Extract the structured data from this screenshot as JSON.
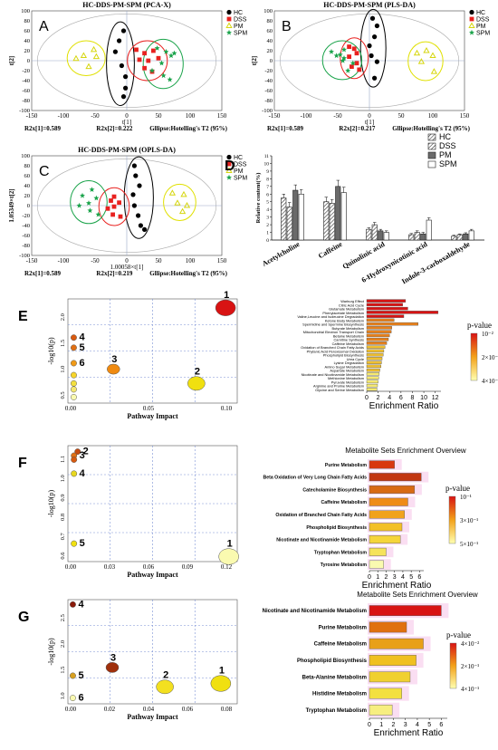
{
  "palette": {
    "hc": "#000000",
    "dss": "#e8211f",
    "pm": "#d6d60f",
    "spm": "#1aa34a",
    "grid": "#7a8fd4",
    "ref_line": "#9aa8c7",
    "heat_low": "#ffffb0",
    "heat_mid": "#f3a21a",
    "heat_high": "#d81313",
    "highlight": "#f6c3e8"
  },
  "legend_groups": [
    "HC",
    "DSS",
    "PM",
    "SPM"
  ],
  "figure_a": {
    "letter": "A",
    "title": "HC-DDS-PM-SPM (PCA-X)",
    "ylabel": "t[2]",
    "xlabel": "t[1]",
    "footer": [
      "R2x[1]=0.589",
      "R2x[2]=0.222",
      "Gllipse:Hotelling's T2 (95%)"
    ],
    "xticks": [
      "-150",
      "-100",
      "-50",
      "0",
      "50",
      "100",
      "150"
    ],
    "yticks": [
      "-100",
      "-80",
      "-60",
      "-40",
      "-20",
      "0",
      "20",
      "40",
      "60",
      "80",
      "100"
    ],
    "points": {
      "HC": [
        [
          -5,
          60
        ],
        [
          -12,
          40
        ],
        [
          -18,
          18
        ],
        [
          -8,
          -10
        ],
        [
          -2,
          -32
        ],
        [
          -2,
          -55
        ],
        [
          -5,
          -72
        ]
      ],
      "DSS": [
        [
          15,
          22
        ],
        [
          28,
          15
        ],
        [
          42,
          20
        ],
        [
          20,
          2
        ],
        [
          34,
          0
        ],
        [
          50,
          5
        ],
        [
          28,
          -15
        ],
        [
          40,
          -22
        ]
      ],
      "PM": [
        [
          -68,
          10
        ],
        [
          -80,
          4
        ],
        [
          -48,
          8
        ],
        [
          -52,
          22
        ],
        [
          -60,
          -12
        ]
      ],
      "SPM": [
        [
          48,
          25
        ],
        [
          62,
          18
        ],
        [
          75,
          15
        ],
        [
          70,
          10
        ],
        [
          55,
          -5
        ],
        [
          40,
          -20
        ],
        [
          58,
          -30
        ],
        [
          68,
          -38
        ]
      ]
    }
  },
  "figure_b": {
    "letter": "B",
    "title": "HC-DDS-PM-SPM (PLS-DA)",
    "ylabel": "t[2]",
    "xlabel": "t[1]",
    "footer": [
      "R2x[1]=0.589",
      "R2x[2]=0.217",
      "Gllipse:Hotelling's T2 (95%)"
    ],
    "xticks": [
      "-150",
      "-100",
      "-50",
      "0",
      "50",
      "100",
      "150"
    ],
    "yticks": [
      "-100",
      "-80",
      "-60",
      "-40",
      "-20",
      "0",
      "20",
      "40",
      "60",
      "80",
      "100"
    ],
    "points": {
      "HC": [
        [
          5,
          85
        ],
        [
          12,
          70
        ],
        [
          8,
          48
        ],
        [
          0,
          30
        ],
        [
          3,
          10
        ],
        [
          12,
          -2
        ],
        [
          8,
          -35
        ]
      ],
      "DSS": [
        [
          -32,
          28
        ],
        [
          -24,
          24
        ],
        [
          -20,
          15
        ],
        [
          -32,
          8
        ],
        [
          -20,
          -5
        ],
        [
          -28,
          -12
        ],
        [
          -16,
          -18
        ]
      ],
      "PM": [
        [
          75,
          15
        ],
        [
          90,
          20
        ],
        [
          100,
          10
        ],
        [
          82,
          -2
        ],
        [
          102,
          -22
        ]
      ],
      "SPM": [
        [
          -60,
          18
        ],
        [
          -40,
          22
        ],
        [
          -46,
          12
        ],
        [
          -52,
          10
        ],
        [
          -40,
          5
        ],
        [
          -42,
          0
        ],
        [
          -26,
          -5
        ],
        [
          -34,
          -20
        ]
      ]
    }
  },
  "figure_c": {
    "letter": "C",
    "title": "HC-DDS-PM-SPM (OPLS-DA)",
    "ylabel": "1.05349×t[2]",
    "xlabel": "1.00058×t[1]",
    "footer": [
      "R2x[1]=0.589",
      "R2x[2]=0.219",
      "Gllipse:Hotelling's T2 (95%)"
    ],
    "xticks": [
      "-150",
      "-100",
      "-50",
      "0",
      "50",
      "100",
      "150"
    ],
    "yticks": [
      "-100",
      "-80",
      "-60",
      "-40",
      "-20",
      "0",
      "20",
      "40",
      "60",
      "80",
      "100"
    ],
    "points": {
      "HC": [
        [
          12,
          80
        ],
        [
          14,
          60
        ],
        [
          20,
          40
        ],
        [
          10,
          22
        ],
        [
          12,
          0
        ],
        [
          18,
          -20
        ],
        [
          22,
          -40
        ],
        [
          28,
          -48
        ]
      ],
      "DSS": [
        [
          -20,
          18
        ],
        [
          -25,
          10
        ],
        [
          -12,
          6
        ],
        [
          -20,
          -2
        ],
        [
          -30,
          -6
        ],
        [
          -22,
          -18
        ],
        [
          -10,
          -22
        ]
      ],
      "PM": [
        [
          72,
          25
        ],
        [
          90,
          22
        ],
        [
          80,
          5
        ],
        [
          95,
          0
        ],
        [
          88,
          -12
        ]
      ],
      "SPM": [
        [
          -70,
          20
        ],
        [
          -55,
          32
        ],
        [
          -48,
          15
        ],
        [
          -60,
          5
        ],
        [
          -75,
          0
        ],
        [
          -58,
          -10
        ],
        [
          -45,
          -18
        ]
      ]
    }
  },
  "figure_d": {
    "letter": "D",
    "ylabel": "Relative content(%)",
    "yticks": [
      "0",
      "1",
      "2",
      "3",
      "4",
      "5",
      "6",
      "7",
      "8",
      "9",
      "10",
      "11"
    ],
    "categories": [
      "Acetylcholine",
      "Caffeine",
      "Quinolinic acid",
      "6-Hydroxynicotinic acid",
      "Indole-3-carboxaldehyde"
    ],
    "series": [
      {
        "name": "HC",
        "values": [
          5.5,
          5.0,
          1.4,
          0.7,
          0.5
        ]
      },
      {
        "name": "DSS",
        "values": [
          4.3,
          4.8,
          2.0,
          1.0,
          0.7
        ]
      },
      {
        "name": "PM",
        "values": [
          6.5,
          7.0,
          1.2,
          0.8,
          0.8
        ]
      },
      {
        "name": "SPM",
        "values": [
          6.0,
          6.2,
          1.0,
          2.6,
          1.2
        ]
      }
    ],
    "errors": [
      [
        0.5,
        0.6,
        0.2,
        0.15,
        0.12
      ],
      [
        0.6,
        0.5,
        0.3,
        0.2,
        0.1
      ],
      [
        0.7,
        0.8,
        0.2,
        0.2,
        0.15
      ],
      [
        0.6,
        0.7,
        0.2,
        0.3,
        0.2
      ]
    ]
  },
  "figure_e": {
    "letter": "E",
    "bubble": {
      "ylabel": "-log10(p)",
      "xlabel": "Pathway Impact",
      "xticks": [
        "0.00",
        "0.05",
        "0.10"
      ],
      "yticks": [
        "0.5",
        "1.0",
        "1.5",
        "2.0"
      ],
      "points": [
        {
          "label": "1",
          "x": 0.13,
          "y": 2.05,
          "size": 3,
          "color": "#d81313"
        },
        {
          "label": "2",
          "x": 0.105,
          "y": 0.78,
          "size": 2.5,
          "color": "#f0e010"
        },
        {
          "label": "3",
          "x": 0.034,
          "y": 1.02,
          "size": 2,
          "color": "#f08a10"
        },
        {
          "label": "4",
          "x": 0.0,
          "y": 1.55,
          "size": 1,
          "color": "#d85a10"
        },
        {
          "label": "5",
          "x": 0.0,
          "y": 1.38,
          "size": 1,
          "color": "#e07014"
        },
        {
          "label": "6",
          "x": 0.0,
          "y": 1.12,
          "size": 1,
          "color": "#f09a18"
        },
        {
          "label": "",
          "x": 0.0,
          "y": 0.92,
          "size": 1,
          "color": "#f7d52a"
        },
        {
          "label": "",
          "x": 0.0,
          "y": 0.78,
          "size": 1,
          "color": "#f3e040"
        },
        {
          "label": "",
          "x": 0.0,
          "y": 0.68,
          "size": 1,
          "color": "#f5e870"
        },
        {
          "label": "",
          "x": 0.0,
          "y": 0.55,
          "size": 1,
          "color": "#fafab0"
        }
      ]
    },
    "bars": {
      "xlabel": "Enrichment Ratio",
      "xticks": [
        "0",
        "2",
        "4",
        "6",
        "8",
        "10",
        "12"
      ],
      "legend_title": "p-value",
      "legend_ticks": [
        "10⁻²",
        "2×10⁻¹",
        "4×10⁻¹"
      ],
      "rows": [
        {
          "label": "Warburg Effect",
          "value": 6.8
        },
        {
          "label": "Citric Acid Cycle",
          "value": 6.3
        },
        {
          "label": "Glutamate Metabolism",
          "value": 7.2
        },
        {
          "label": "Phenylacetate Metabolism",
          "value": 12.5
        },
        {
          "label": "Valine,Leucine and Isoleucine Degradation",
          "value": 6.5
        },
        {
          "label": "Ketone Body Metabolism",
          "value": 4.8
        },
        {
          "label": "Spermidine and Spermine Biosynthesis",
          "value": 9.0
        },
        {
          "label": "Butyrate Metabolism",
          "value": 4.4
        },
        {
          "label": "Mitochondrial Electron Transport Chain",
          "value": 4.3
        },
        {
          "label": "Betaine Metabolism",
          "value": 4.0
        },
        {
          "label": "Carnitine Synthesis",
          "value": 3.8
        },
        {
          "label": "Caffeine Metabolism",
          "value": 3.5
        },
        {
          "label": "Oxidation of Branched Chain Fatty Acids",
          "value": 3.2
        },
        {
          "label": "Phytanic Acid Peroxisomal Oxidation",
          "value": 3.0
        },
        {
          "label": "Phospholipid Biosynthesis",
          "value": 2.9
        },
        {
          "label": "Urea Cycle",
          "value": 2.7
        },
        {
          "label": "Lysine Degradation",
          "value": 2.6
        },
        {
          "label": "Amino Sugar Metabolism",
          "value": 2.5
        },
        {
          "label": "Aspartate Metabolism",
          "value": 2.3
        },
        {
          "label": "Nicotinate and Nicotinamide Metabolism",
          "value": 2.2
        },
        {
          "label": "Methionine Metabolism",
          "value": 2.1
        },
        {
          "label": "Pyruvate Metabolism",
          "value": 2.0
        },
        {
          "label": "Arginine and Proline Metabolism",
          "value": 1.9
        },
        {
          "label": "Glycine and Serine Metabolism",
          "value": 1.8
        }
      ]
    }
  },
  "figure_f": {
    "letter": "F",
    "bubble": {
      "ylabel": "-log10(p)",
      "xlabel": "Pathway Impact",
      "xticks": [
        "0.00",
        "0.03",
        "0.06",
        "0.09",
        "0.12"
      ],
      "yticks": [
        "0.6",
        "0.7",
        "0.8",
        "0.9",
        "1.0",
        "1.1"
      ],
      "points": [
        {
          "label": "1",
          "x": 0.128,
          "y": 0.575,
          "size": 3,
          "color": "#fafab0"
        },
        {
          "label": "2",
          "x": 0.003,
          "y": 1.1,
          "size": 1,
          "color": "#c44a10"
        },
        {
          "label": "3",
          "x": 0.0,
          "y": 1.08,
          "size": 1,
          "color": "#e07014"
        },
        {
          "label": "4",
          "x": 0.0,
          "y": 0.99,
          "size": 1,
          "color": "#e8d820"
        },
        {
          "label": "5",
          "x": 0.0,
          "y": 0.64,
          "size": 1,
          "color": "#f0e010"
        },
        {
          "label": "",
          "x": 0.0,
          "y": 1.06,
          "size": 1,
          "color": "#d65a10"
        }
      ]
    },
    "bars": {
      "title": "Metabolite Sets Enrichment Overview",
      "xlabel": "Enrichment Ratio",
      "xticks": [
        "0",
        "1",
        "2",
        "3",
        "4",
        "5",
        "6"
      ],
      "legend_title": "p-value",
      "legend_ticks": [
        "10⁻¹",
        "3×10⁻¹",
        "5×10⁻¹"
      ],
      "rows": [
        {
          "label": "Purine Metabolism",
          "value": 3.0,
          "color": "#d8370f"
        },
        {
          "label": "Beta Oxidation of Very Long Chain Fatty Acids",
          "value": 6.2,
          "color": "#c23612"
        },
        {
          "label": "Catecholamine Biosynthesis",
          "value": 5.4,
          "color": "#d86a14"
        },
        {
          "label": "Caffeine Metabolism",
          "value": 4.6,
          "color": "#ef8c18"
        },
        {
          "label": "Oxidation of Branched Chain Fatty Acids",
          "value": 4.2,
          "color": "#f0a21c"
        },
        {
          "label": "Phospholipid Biosynthesis",
          "value": 3.9,
          "color": "#f3c027"
        },
        {
          "label": "Nicotinate and Nicotinamide Metabolism",
          "value": 3.7,
          "color": "#f5d53a"
        },
        {
          "label": "Tryptophan Metabolism",
          "value": 2.0,
          "color": "#f6e35a"
        },
        {
          "label": "Tyrosine Metabolism",
          "value": 1.7,
          "color": "#fafab0"
        }
      ]
    }
  },
  "figure_g": {
    "letter": "G",
    "bubble": {
      "ylabel": "-log10(p)",
      "xlabel": "Pathway Impact",
      "xticks": [
        "0.00",
        "0.02",
        "0.04",
        "0.06",
        "0.08"
      ],
      "yticks": [
        "1.0",
        "1.5",
        "2.0",
        "2.5"
      ],
      "points": [
        {
          "label": "1",
          "x": 0.09,
          "y": 0.92,
          "size": 3,
          "color": "#f0e010"
        },
        {
          "label": "2",
          "x": 0.056,
          "y": 0.85,
          "size": 2.5,
          "color": "#f3e020"
        },
        {
          "label": "3",
          "x": 0.024,
          "y": 1.25,
          "size": 2,
          "color": "#a0300c"
        },
        {
          "label": "4",
          "x": 0.0,
          "y": 2.55,
          "size": 1,
          "color": "#8a1a0a"
        },
        {
          "label": "5",
          "x": 0.0,
          "y": 1.08,
          "size": 1,
          "color": "#d8a020"
        },
        {
          "label": "6",
          "x": 0.0,
          "y": 0.62,
          "size": 1,
          "color": "#fafab0"
        }
      ]
    },
    "bars": {
      "title": "Metabolite Sets Enrichment Overview",
      "xlabel": "Enrichment Ratio",
      "xticks": [
        "0",
        "1",
        "2",
        "3",
        "4",
        "5",
        "6"
      ],
      "legend_title": "p-value",
      "legend_ticks": [
        "4×10⁻²",
        "2×10⁻¹",
        "4×10⁻¹"
      ],
      "rows": [
        {
          "label": "Nicotinate and Nicotinamide Metabolism",
          "value": 6.0,
          "color": "#d81313"
        },
        {
          "label": "Purine Metabolism",
          "value": 3.1,
          "color": "#e0700f"
        },
        {
          "label": "Caffeine Metabolism",
          "value": 4.5,
          "color": "#e8a018"
        },
        {
          "label": "Phospholipid Biosynthesis",
          "value": 3.9,
          "color": "#f0c020"
        },
        {
          "label": "Beta-Alanine Metabolism",
          "value": 3.4,
          "color": "#f0d030"
        },
        {
          "label": "Histidine Metabolism",
          "value": 2.7,
          "color": "#f3e040"
        },
        {
          "label": "Tryptophan Metabolism",
          "value": 1.9,
          "color": "#f7ee80"
        }
      ]
    }
  },
  "chart_data": [
    {
      "type": "scatter",
      "title": "HC-DDS-PM-SPM (PCA-X)",
      "xlabel": "t[1]",
      "ylabel": "t[2]",
      "xlim": [
        -150,
        150
      ],
      "ylim": [
        -100,
        100
      ],
      "legend": [
        "HC",
        "DSS",
        "PM",
        "SPM"
      ]
    },
    {
      "type": "scatter",
      "title": "HC-DDS-PM-SPM (PLS-DA)",
      "xlabel": "t[1]",
      "ylabel": "t[2]",
      "xlim": [
        -150,
        150
      ],
      "ylim": [
        -100,
        100
      ],
      "legend": [
        "HC",
        "DSS",
        "PM",
        "SPM"
      ]
    },
    {
      "type": "scatter",
      "title": "HC-DDS-PM-SPM (OPLS-DA)",
      "xlabel": "1.00058×t[1]",
      "ylabel": "1.05349×t[2]",
      "xlim": [
        -150,
        150
      ],
      "ylim": [
        -100,
        100
      ],
      "legend": [
        "HC",
        "DSS",
        "PM",
        "SPM"
      ]
    },
    {
      "type": "bar",
      "ylabel": "Relative content(%)",
      "ylim": [
        0,
        11
      ],
      "categories": [
        "Acetylcholine",
        "Caffeine",
        "Quinolinic acid",
        "6-Hydroxynicotinic acid",
        "Indole-3-carboxaldehyde"
      ],
      "series": [
        {
          "name": "HC",
          "values": [
            5.5,
            5.0,
            1.4,
            0.7,
            0.5
          ]
        },
        {
          "name": "DSS",
          "values": [
            4.3,
            4.8,
            2.0,
            1.0,
            0.7
          ]
        },
        {
          "name": "PM",
          "values": [
            6.5,
            7.0,
            1.2,
            0.8,
            0.8
          ]
        },
        {
          "name": "SPM",
          "values": [
            6.0,
            6.2,
            1.0,
            2.6,
            1.2
          ]
        }
      ]
    },
    {
      "type": "scatter",
      "xlabel": "Pathway Impact",
      "ylabel": "-log10(p)"
    },
    {
      "type": "bar",
      "xlabel": "Enrichment Ratio",
      "xlim": [
        0,
        13
      ]
    },
    {
      "type": "scatter",
      "xlabel": "Pathway Impact",
      "ylabel": "-log10(p)"
    },
    {
      "type": "bar",
      "title": "Metabolite Sets Enrichment Overview",
      "xlabel": "Enrichment Ratio",
      "xlim": [
        0,
        6.5
      ]
    },
    {
      "type": "scatter",
      "xlabel": "Pathway Impact",
      "ylabel": "-log10(p)"
    },
    {
      "type": "bar",
      "title": "Metabolite Sets Enrichment Overview",
      "xlabel": "Enrichment Ratio",
      "xlim": [
        0,
        6.5
      ]
    }
  ]
}
